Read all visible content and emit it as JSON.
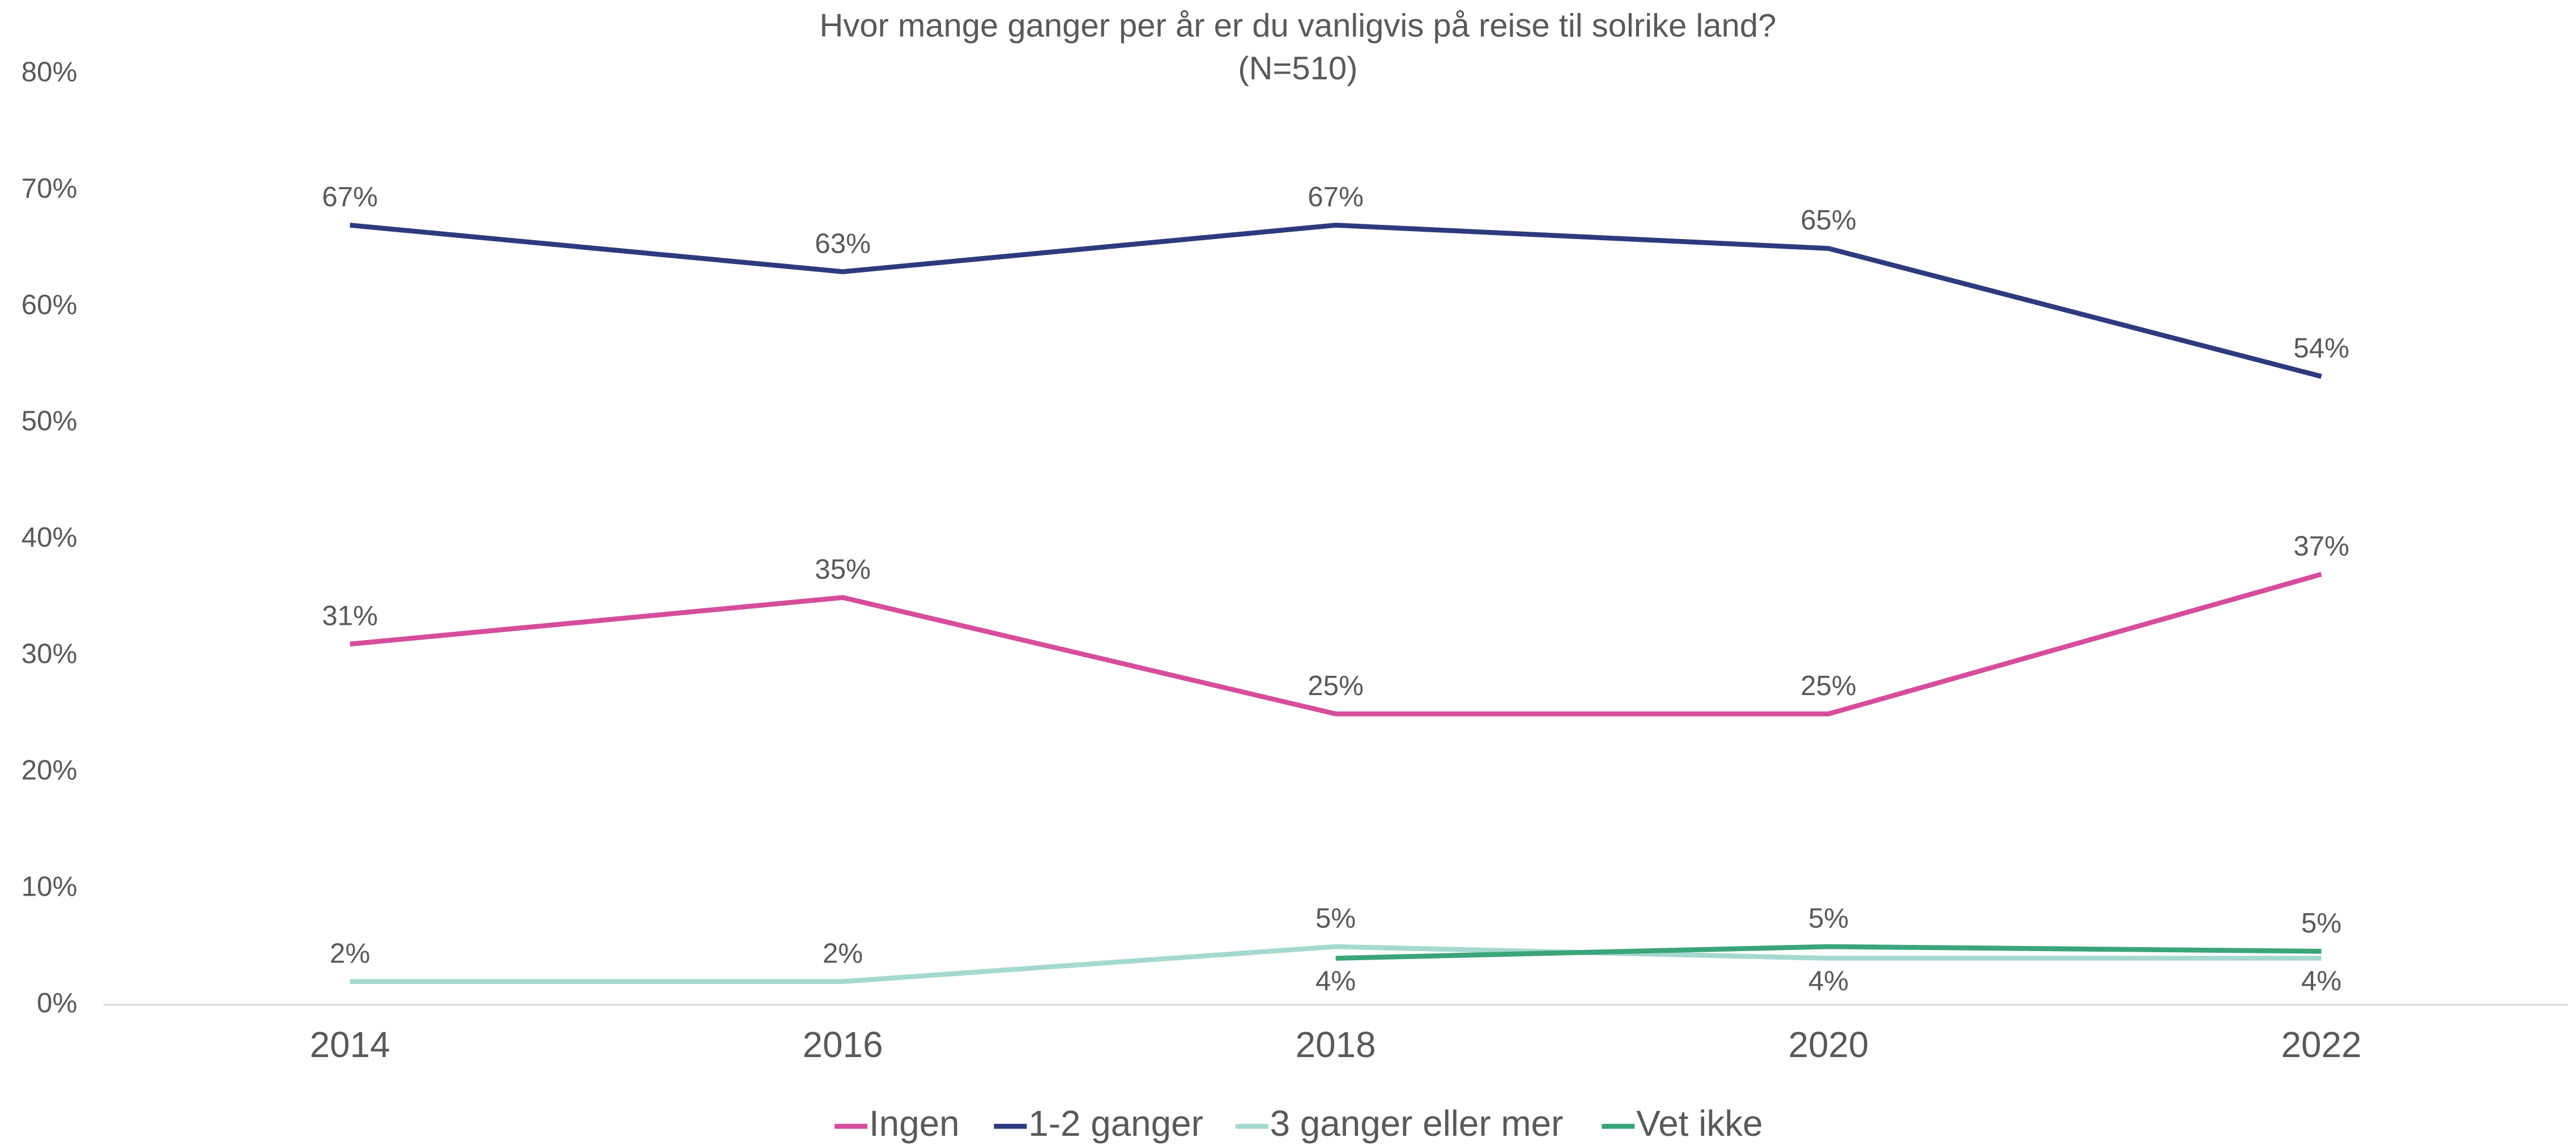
{
  "chart_data": {
    "type": "line",
    "title": "Hvor mange ganger per år er du vanligvis på reise til solrike land?",
    "subtitle": "(N=510)",
    "categories": [
      "2014",
      "2016",
      "2018",
      "2020",
      "2022"
    ],
    "ylim": [
      0,
      80
    ],
    "yticks": [
      {
        "value": 0,
        "label": "0%"
      },
      {
        "value": 10,
        "label": "10%"
      },
      {
        "value": 20,
        "label": "20%"
      },
      {
        "value": 30,
        "label": "30%"
      },
      {
        "value": 40,
        "label": "40%"
      },
      {
        "value": 50,
        "label": "50%"
      },
      {
        "value": 60,
        "label": "60%"
      },
      {
        "value": 70,
        "label": "70%"
      },
      {
        "value": 80,
        "label": "80%"
      }
    ],
    "legend": "bottom",
    "series": [
      {
        "name": "Ingen",
        "color": "#d64d9b",
        "values": [
          31,
          35,
          25,
          25,
          37
        ],
        "value_labels": [
          "31%",
          "35%",
          "25%",
          "25%",
          "37%"
        ]
      },
      {
        "name": "1-2 ganger",
        "color": "#2e3a7e",
        "values": [
          67,
          63,
          67,
          65,
          54
        ],
        "value_labels": [
          "67%",
          "63%",
          "67%",
          "65%",
          "54%"
        ]
      },
      {
        "name": "3 ganger eller mer",
        "color": "#a5d8d0",
        "values": [
          2,
          2,
          5,
          4,
          4
        ],
        "value_labels": [
          "2%",
          "2%",
          "5%",
          "4%",
          "4%"
        ]
      },
      {
        "name": "Vet ikke",
        "color": "#3aa57a",
        "values": [
          null,
          null,
          4,
          5,
          4.6
        ],
        "value_labels": [
          null,
          null,
          "4%",
          "5%",
          "5%"
        ]
      }
    ]
  }
}
